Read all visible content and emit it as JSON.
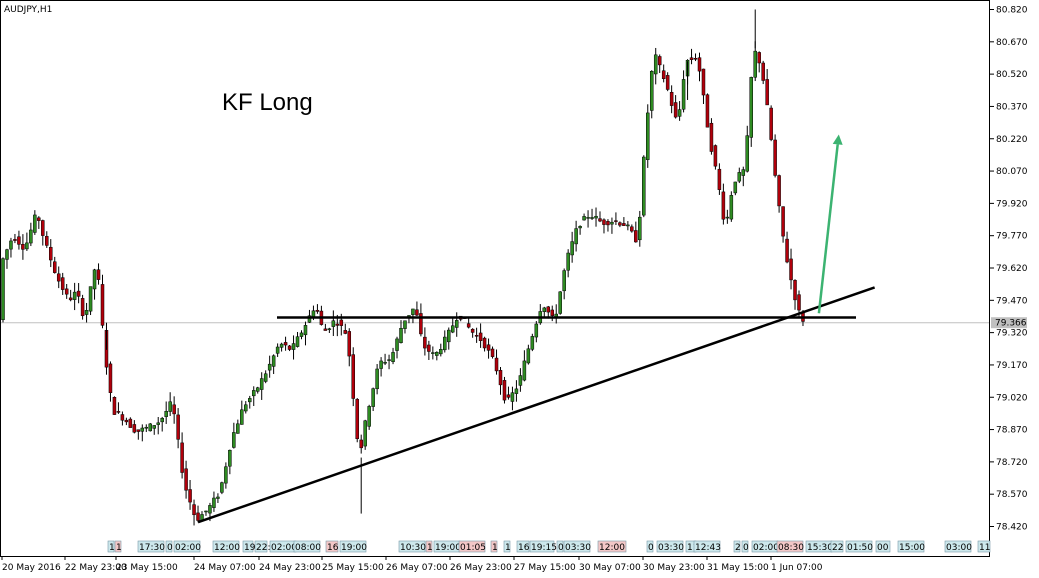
{
  "window": {
    "symbol": "AUDJPY,H1"
  },
  "annotation": {
    "text": "KF Long"
  },
  "colors": {
    "bull": "#2e8b22",
    "bear": "#b0000b",
    "wick": "#000000",
    "trendline": "#000000",
    "arrow": "#3cb371",
    "grid": "#c0c0c0",
    "bid_label_bg": "#c0c0c0"
  },
  "current_price": {
    "value": 79.366,
    "label": "79.366"
  },
  "events_bar": {
    "labels": [
      "1",
      "1",
      "17:30",
      "0",
      "02:00",
      "12:00",
      "22:",
      "19",
      "02:00",
      "08:00",
      "16",
      "19:00",
      "10:30",
      "1",
      "19:00",
      "01:05",
      "1",
      "1",
      "16",
      "19:15",
      "0",
      "03:30",
      "12:00",
      "0",
      "03:30",
      "11",
      "12:43",
      "2",
      "0",
      "02:00",
      "08:30",
      "15:30",
      "22",
      "01:50",
      "00",
      "15:00",
      "03:00",
      "11"
    ]
  },
  "chart_data": {
    "type": "candlestick",
    "title": "AUDJPY,H1",
    "annotation": "KF Long",
    "y_axis": {
      "side": "right",
      "range": [
        78.32,
        80.84
      ],
      "ticks": [
        "80.820",
        "80.670",
        "80.520",
        "80.370",
        "80.220",
        "80.070",
        "79.920",
        "79.770",
        "79.620",
        "79.470",
        "79.320",
        "79.170",
        "79.020",
        "78.870",
        "78.720",
        "78.570",
        "78.420"
      ]
    },
    "x_axis": {
      "ticks": [
        "20 May 2016",
        "22 May 23:00",
        "23 May 15:00",
        "24 May 07:00",
        "24 May 23:00",
        "25 May 15:00",
        "26 May 07:00",
        "26 May 23:00",
        "27 May 15:00",
        "30 May 07:00",
        "30 May 23:00",
        "31 May 15:00",
        "1 Jun 07:00"
      ]
    },
    "horizontal_line": {
      "price": 79.39
    },
    "trendline": {
      "from": {
        "bar": 49,
        "price": 78.44
      },
      "to": {
        "bar": 219,
        "price": 79.53
      }
    },
    "arrow": {
      "from": {
        "bar": 205,
        "price": 79.41
      },
      "to": {
        "bar": 210,
        "price": 80.24
      }
    },
    "anchors": [
      {
        "bar": 0,
        "price": 79.64
      },
      {
        "bar": 3,
        "price": 79.77
      },
      {
        "bar": 6,
        "price": 79.71
      },
      {
        "bar": 9,
        "price": 79.88
      },
      {
        "bar": 11,
        "price": 79.74
      },
      {
        "bar": 14,
        "price": 79.58
      },
      {
        "bar": 17,
        "price": 79.47
      },
      {
        "bar": 19,
        "price": 79.51
      },
      {
        "bar": 21,
        "price": 79.38
      },
      {
        "bar": 24,
        "price": 79.66
      },
      {
        "bar": 26,
        "price": 79.24
      },
      {
        "bar": 28,
        "price": 78.96
      },
      {
        "bar": 31,
        "price": 78.92
      },
      {
        "bar": 34,
        "price": 78.86
      },
      {
        "bar": 37,
        "price": 78.88
      },
      {
        "bar": 40,
        "price": 78.91
      },
      {
        "bar": 43,
        "price": 79.0
      },
      {
        "bar": 46,
        "price": 78.62
      },
      {
        "bar": 49,
        "price": 78.45
      },
      {
        "bar": 52,
        "price": 78.5
      },
      {
        "bar": 55,
        "price": 78.58
      },
      {
        "bar": 58,
        "price": 78.83
      },
      {
        "bar": 61,
        "price": 78.98
      },
      {
        "bar": 64,
        "price": 79.05
      },
      {
        "bar": 67,
        "price": 79.15
      },
      {
        "bar": 70,
        "price": 79.27
      },
      {
        "bar": 73,
        "price": 79.24
      },
      {
        "bar": 76,
        "price": 79.34
      },
      {
        "bar": 79,
        "price": 79.45
      },
      {
        "bar": 81,
        "price": 79.32
      },
      {
        "bar": 84,
        "price": 79.38
      },
      {
        "bar": 87,
        "price": 79.31
      },
      {
        "bar": 90,
        "price": 78.74
      },
      {
        "bar": 92,
        "price": 78.95
      },
      {
        "bar": 95,
        "price": 79.18
      },
      {
        "bar": 98,
        "price": 79.2
      },
      {
        "bar": 101,
        "price": 79.37
      },
      {
        "bar": 104,
        "price": 79.44
      },
      {
        "bar": 106,
        "price": 79.26
      },
      {
        "bar": 109,
        "price": 79.21
      },
      {
        "bar": 112,
        "price": 79.3
      },
      {
        "bar": 115,
        "price": 79.41
      },
      {
        "bar": 118,
        "price": 79.33
      },
      {
        "bar": 121,
        "price": 79.28
      },
      {
        "bar": 124,
        "price": 79.18
      },
      {
        "bar": 127,
        "price": 78.99
      },
      {
        "bar": 130,
        "price": 79.08
      },
      {
        "bar": 133,
        "price": 79.28
      },
      {
        "bar": 136,
        "price": 79.46
      },
      {
        "bar": 139,
        "price": 79.37
      },
      {
        "bar": 142,
        "price": 79.65
      },
      {
        "bar": 145,
        "price": 79.82
      },
      {
        "bar": 148,
        "price": 79.87
      },
      {
        "bar": 151,
        "price": 79.83
      },
      {
        "bar": 154,
        "price": 79.84
      },
      {
        "bar": 157,
        "price": 79.82
      },
      {
        "bar": 160,
        "price": 79.74
      },
      {
        "bar": 162,
        "price": 80.25
      },
      {
        "bar": 164,
        "price": 80.62
      },
      {
        "bar": 167,
        "price": 80.48
      },
      {
        "bar": 170,
        "price": 80.28
      },
      {
        "bar": 172,
        "price": 80.58
      },
      {
        "bar": 175,
        "price": 80.6
      },
      {
        "bar": 178,
        "price": 80.22
      },
      {
        "bar": 180,
        "price": 80.04
      },
      {
        "bar": 182,
        "price": 79.8
      },
      {
        "bar": 184,
        "price": 80.02
      },
      {
        "bar": 187,
        "price": 80.08
      },
      {
        "bar": 189,
        "price": 80.64
      },
      {
        "bar": 191,
        "price": 80.56
      },
      {
        "bar": 193,
        "price": 80.3
      },
      {
        "bar": 195,
        "price": 79.96
      },
      {
        "bar": 197,
        "price": 79.7
      },
      {
        "bar": 199,
        "price": 79.52
      },
      {
        "bar": 201,
        "price": 79.38
      }
    ]
  }
}
